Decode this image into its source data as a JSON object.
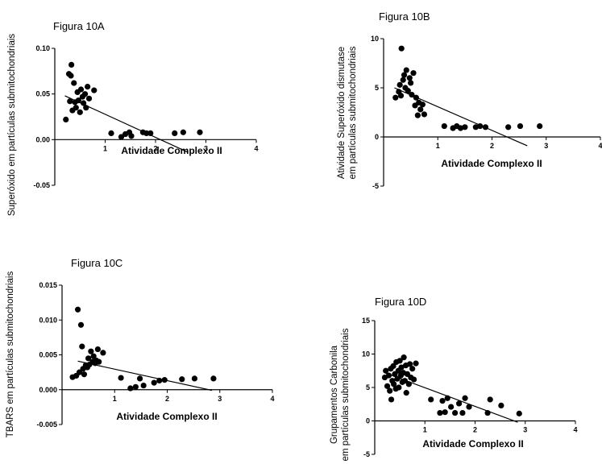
{
  "chart_data": [
    {
      "type": "scatter",
      "title": "Figura 10A",
      "xlabel": "Atividade Complexo II",
      "ylabel": [
        "Superóxido em partículas submitochondriais"
      ],
      "xlim": [
        0,
        4
      ],
      "ylim": [
        -0.05,
        0.1
      ],
      "xticks": [
        "1",
        "2",
        "3",
        "4"
      ],
      "yticks": [
        "0.10",
        "0.05",
        "0.00",
        "-0.05"
      ],
      "grid": false,
      "series": [
        {
          "points": [
            [
              0.22,
              0.022
            ],
            [
              0.28,
              0.072
            ],
            [
              0.32,
              0.07
            ],
            [
              0.33,
              0.082
            ],
            [
              0.3,
              0.042
            ],
            [
              0.35,
              0.032
            ],
            [
              0.38,
              0.062
            ],
            [
              0.4,
              0.041
            ],
            [
              0.42,
              0.035
            ],
            [
              0.45,
              0.052
            ],
            [
              0.47,
              0.043
            ],
            [
              0.5,
              0.03
            ],
            [
              0.52,
              0.055
            ],
            [
              0.55,
              0.047
            ],
            [
              0.57,
              0.04
            ],
            [
              0.6,
              0.05
            ],
            [
              0.62,
              0.035
            ],
            [
              0.65,
              0.058
            ],
            [
              0.68,
              0.045
            ],
            [
              0.78,
              0.054
            ],
            [
              1.12,
              0.007
            ],
            [
              1.32,
              0.003
            ],
            [
              1.4,
              0.006
            ],
            [
              1.48,
              0.008
            ],
            [
              1.52,
              0.004
            ],
            [
              1.75,
              0.008
            ],
            [
              1.82,
              0.007
            ],
            [
              1.9,
              0.007
            ],
            [
              2.38,
              0.007
            ],
            [
              2.55,
              0.008
            ],
            [
              2.88,
              0.008
            ]
          ],
          "fit": [
            [
              0.2,
              0.048
            ],
            [
              2.65,
              -0.014
            ]
          ]
        }
      ]
    },
    {
      "type": "scatter",
      "title": "Figura 10B",
      "xlabel": "Atividade Complexo II",
      "ylabel": [
        "Atividade Superóxido dismutase",
        "em partículas submitochondriais"
      ],
      "xlim": [
        0,
        4
      ],
      "ylim": [
        -5,
        10
      ],
      "xticks": [
        "1",
        "2",
        "3",
        "4"
      ],
      "yticks": [
        "10",
        "5",
        "0",
        "-5"
      ],
      "grid": false,
      "series": [
        {
          "points": [
            [
              0.22,
              4.0
            ],
            [
              0.28,
              4.6
            ],
            [
              0.3,
              5.3
            ],
            [
              0.32,
              4.2
            ],
            [
              0.33,
              9.0
            ],
            [
              0.36,
              5.8
            ],
            [
              0.38,
              6.3
            ],
            [
              0.4,
              5.0
            ],
            [
              0.42,
              6.8
            ],
            [
              0.45,
              4.7
            ],
            [
              0.48,
              6.0
            ],
            [
              0.5,
              5.5
            ],
            [
              0.52,
              4.3
            ],
            [
              0.55,
              6.5
            ],
            [
              0.58,
              3.2
            ],
            [
              0.6,
              4.0
            ],
            [
              0.63,
              2.2
            ],
            [
              0.65,
              3.5
            ],
            [
              0.68,
              2.8
            ],
            [
              0.72,
              3.3
            ],
            [
              0.75,
              2.3
            ],
            [
              1.12,
              1.1
            ],
            [
              1.28,
              0.9
            ],
            [
              1.35,
              1.1
            ],
            [
              1.42,
              0.9
            ],
            [
              1.5,
              1.0
            ],
            [
              1.7,
              1.0
            ],
            [
              1.78,
              1.1
            ],
            [
              1.88,
              1.0
            ],
            [
              2.3,
              1.0
            ],
            [
              2.52,
              1.1
            ],
            [
              2.88,
              1.1
            ]
          ],
          "fit": [
            [
              0.2,
              5.0
            ],
            [
              2.65,
              -0.9
            ]
          ]
        }
      ]
    },
    {
      "type": "scatter",
      "title": "Figura 10C",
      "xlabel": "Atividade Complexo II",
      "ylabel": [
        "TBARS em partículas submitochondriais"
      ],
      "xlim": [
        0,
        4
      ],
      "ylim": [
        -0.005,
        0.015
      ],
      "xticks": [
        "1",
        "2",
        "3",
        "4"
      ],
      "yticks": [
        "0.015",
        "0.010",
        "0.005",
        "0.000",
        "-0.005"
      ],
      "grid": false,
      "series": [
        {
          "points": [
            [
              0.2,
              0.0018
            ],
            [
              0.27,
              0.002
            ],
            [
              0.3,
              0.0115
            ],
            [
              0.33,
              0.0025
            ],
            [
              0.36,
              0.0093
            ],
            [
              0.38,
              0.0062
            ],
            [
              0.4,
              0.003
            ],
            [
              0.42,
              0.0022
            ],
            [
              0.45,
              0.0035
            ],
            [
              0.48,
              0.0032
            ],
            [
              0.5,
              0.0045
            ],
            [
              0.52,
              0.0036
            ],
            [
              0.55,
              0.0055
            ],
            [
              0.58,
              0.004
            ],
            [
              0.6,
              0.0048
            ],
            [
              0.63,
              0.0038
            ],
            [
              0.65,
              0.0042
            ],
            [
              0.68,
              0.0058
            ],
            [
              0.7,
              0.004
            ],
            [
              0.78,
              0.0053
            ],
            [
              1.12,
              0.0017
            ],
            [
              1.3,
              0.0002
            ],
            [
              1.4,
              0.0004
            ],
            [
              1.48,
              0.0016
            ],
            [
              1.55,
              0.0006
            ],
            [
              1.75,
              0.001
            ],
            [
              1.85,
              0.0013
            ],
            [
              1.95,
              0.0014
            ],
            [
              2.28,
              0.0015
            ],
            [
              2.52,
              0.0016
            ],
            [
              2.88,
              0.0016
            ]
          ],
          "fit": [
            [
              0.3,
              0.0041
            ],
            [
              2.85,
              -0.0001
            ]
          ]
        }
      ]
    },
    {
      "type": "scatter",
      "title": "Figura 10D",
      "xlabel": "Atividade Complexo II",
      "ylabel": [
        "Grupamentos Carbonila",
        "em partículas submitochondriais"
      ],
      "xlim": [
        0,
        4
      ],
      "ylim": [
        -5,
        15
      ],
      "xticks": [
        "1",
        "2",
        "3",
        "4"
      ],
      "yticks": [
        "15",
        "10",
        "5",
        "0",
        "-5"
      ],
      "grid": false,
      "series": [
        {
          "points": [
            [
              0.2,
              6.5
            ],
            [
              0.22,
              7.5
            ],
            [
              0.25,
              5.2
            ],
            [
              0.28,
              6.8
            ],
            [
              0.3,
              4.5
            ],
            [
              0.32,
              7.8
            ],
            [
              0.33,
              3.2
            ],
            [
              0.35,
              6.0
            ],
            [
              0.37,
              8.2
            ],
            [
              0.38,
              5.5
            ],
            [
              0.4,
              7.0
            ],
            [
              0.42,
              4.8
            ],
            [
              0.43,
              8.8
            ],
            [
              0.45,
              6.3
            ],
            [
              0.47,
              7.5
            ],
            [
              0.48,
              5.0
            ],
            [
              0.5,
              9.0
            ],
            [
              0.52,
              6.8
            ],
            [
              0.53,
              8.0
            ],
            [
              0.55,
              5.8
            ],
            [
              0.57,
              7.2
            ],
            [
              0.58,
              9.5
            ],
            [
              0.6,
              6.0
            ],
            [
              0.62,
              8.3
            ],
            [
              0.63,
              4.2
            ],
            [
              0.65,
              7.0
            ],
            [
              0.68,
              5.5
            ],
            [
              0.7,
              8.5
            ],
            [
              0.72,
              6.5
            ],
            [
              0.75,
              7.8
            ],
            [
              0.78,
              6.2
            ],
            [
              0.82,
              8.6
            ],
            [
              1.12,
              3.2
            ],
            [
              1.3,
              1.2
            ],
            [
              1.35,
              3.0
            ],
            [
              1.4,
              1.3
            ],
            [
              1.45,
              3.4
            ],
            [
              1.52,
              2.1
            ],
            [
              1.6,
              1.2
            ],
            [
              1.68,
              2.6
            ],
            [
              1.75,
              1.2
            ],
            [
              1.8,
              3.4
            ],
            [
              1.88,
              2.1
            ],
            [
              2.25,
              1.2
            ],
            [
              2.3,
              3.2
            ],
            [
              2.52,
              2.3
            ],
            [
              2.88,
              1.1
            ]
          ],
          "fit": [
            [
              0.2,
              7.2
            ],
            [
              2.85,
              -0.2
            ]
          ]
        }
      ]
    }
  ]
}
